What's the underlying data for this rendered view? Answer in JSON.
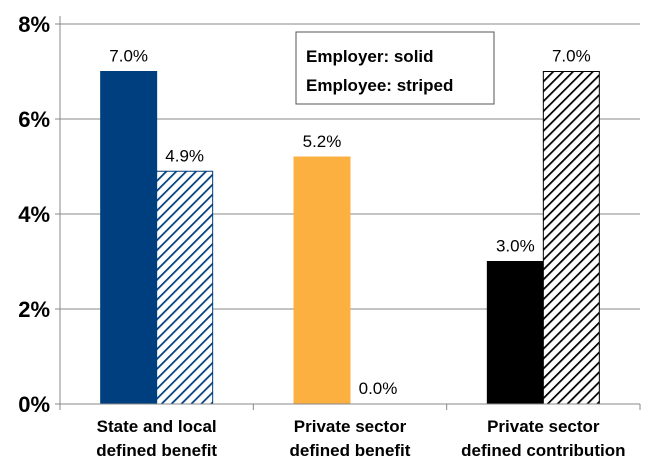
{
  "chart_data": {
    "type": "bar",
    "categories": [
      [
        "State and local",
        "defined benefit"
      ],
      [
        "Private sector",
        "defined benefit"
      ],
      [
        "Private sector",
        "defined contribution"
      ]
    ],
    "series": [
      {
        "key": "employer",
        "values": [
          7.0,
          5.2,
          3.0
        ],
        "data_labels": [
          "7.0%",
          "5.2%",
          "3.0%"
        ]
      },
      {
        "key": "employee",
        "values": [
          4.9,
          0.0,
          7.0
        ],
        "data_labels": [
          "4.9%",
          "0.0%",
          "7.0%"
        ]
      }
    ],
    "category_colors": [
      "#003F7F",
      "#FBB040",
      "#000000"
    ],
    "yticks": [
      0,
      2,
      4,
      6,
      8
    ],
    "ytick_labels": [
      "0%",
      "2%",
      "4%",
      "6%",
      "8%"
    ],
    "ylim": [
      0,
      8
    ],
    "grid": true,
    "legend": {
      "position": "top-center",
      "lines": [
        "Employer: solid",
        "Employee: striped"
      ]
    }
  }
}
